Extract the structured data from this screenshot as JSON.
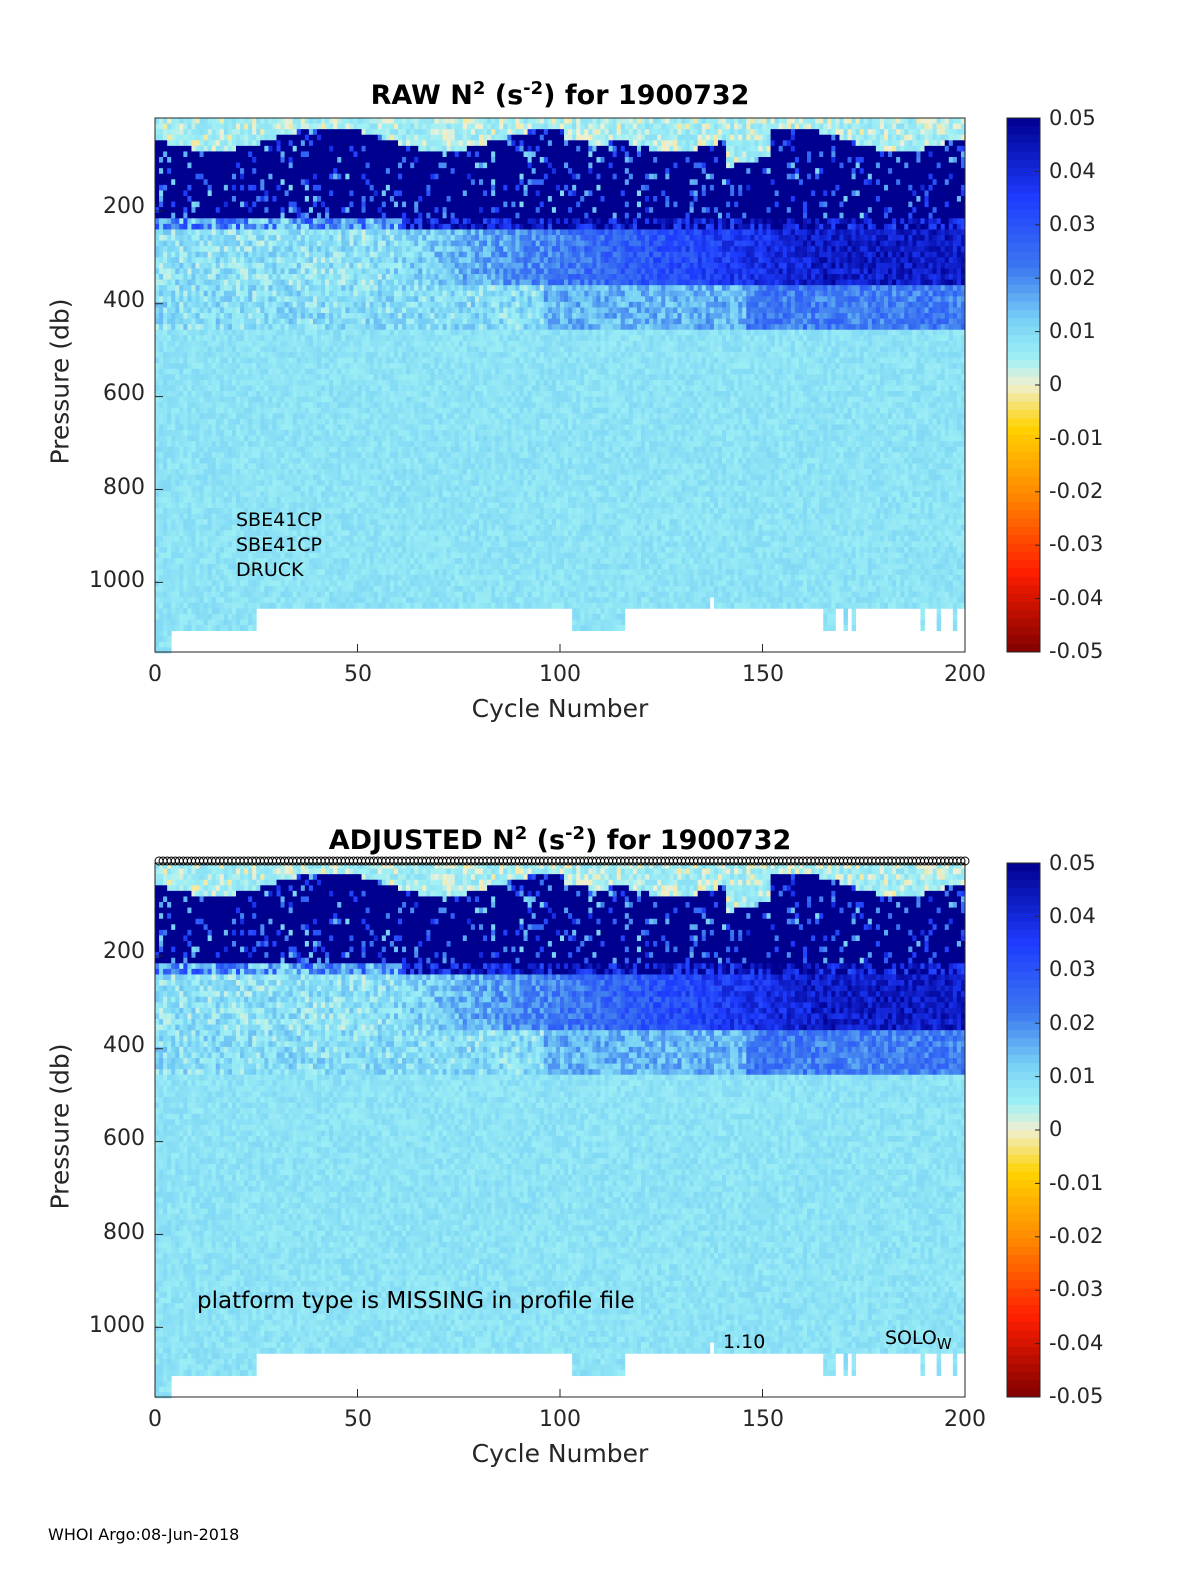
{
  "footer": "WHOI Argo:08-Jun-2018",
  "axes": {
    "xlabel": "Cycle Number",
    "ylabel": "Pressure (db)",
    "x_ticks": [
      "0",
      "50",
      "100",
      "150",
      "200"
    ],
    "y_ticks": [
      "200",
      "400",
      "600",
      "800",
      "1000"
    ],
    "colorbar_ticks": [
      "0.05",
      "0.04",
      "0.03",
      "0.02",
      "0.01",
      "0",
      "-0.01",
      "-0.02",
      "-0.03",
      "-0.04",
      "-0.05"
    ]
  },
  "panels": {
    "raw": {
      "title_main": "RAW N",
      "title_sup": "2",
      "title_unit_open": " (s",
      "title_unit_sup": "-2",
      "title_rest": ") for 1900732",
      "sensors": [
        "SBE41CP",
        "SBE41CP",
        "DRUCK"
      ]
    },
    "adjusted": {
      "title_main": "ADJUSTED N",
      "title_sup": "2",
      "title_unit_open": " (s",
      "title_unit_sup": "-2",
      "title_rest": ") for 1900732",
      "platform_note": "platform type is MISSING in profile file",
      "version": "1.10",
      "float_type": "SOLO",
      "float_type_sub": "W"
    }
  },
  "colors": {
    "deep_blue": "#00008f",
    "blue": "#1e3cff",
    "mid_blue": "#3c78f0",
    "light_blue": "#78d2f5",
    "cyan": "#9ff0f5",
    "pale": "#f0f0d2",
    "yellow": "#ffd200",
    "orange": "#ff8c00",
    "red": "#ff1e00",
    "dark_red": "#800000"
  },
  "chart_data": [
    {
      "type": "heatmap",
      "title": "RAW N^2 (s^-2) for 1900732",
      "xlabel": "Cycle Number",
      "ylabel": "Pressure (db)",
      "xlim": [
        0,
        200
      ],
      "ylim": [
        1150,
        0
      ],
      "clim": [
        -0.05,
        0.05
      ],
      "colormap": "jet-like (dark red → orange → pale → cyan → blue → navy)",
      "bands": [
        {
          "pressure": [
            0,
            40
          ],
          "description": "near-zero (pale / cyan)"
        },
        {
          "pressure": [
            40,
            230
          ],
          "n2": 0.05,
          "description": "strong stratification, saturated navy"
        },
        {
          "pressure": [
            230,
            360
          ],
          "n2": "0.01 (cycles 0-60) to 0.04 (cycles 150-200)"
        },
        {
          "pressure": [
            360,
            450
          ],
          "n2": "0.01 to 0.03"
        },
        {
          "pressure": [
            450,
            1050
          ],
          "n2": 0.008
        }
      ],
      "profile_depth_max": [
        {
          "cycles": [
            0,
            4
          ],
          "pressure": 1150
        },
        {
          "cycles": [
            4,
            25
          ],
          "pressure": 1100
        },
        {
          "cycles": [
            25,
            103
          ],
          "pressure": 1050
        },
        {
          "cycles": [
            103,
            116
          ],
          "pressure": 1100
        },
        {
          "cycles": [
            116,
            200
          ],
          "pressure": 1050
        }
      ]
    },
    {
      "type": "heatmap",
      "title": "ADJUSTED N^2 (s^-2) for 1900732",
      "xlabel": "Cycle Number",
      "ylabel": "Pressure (db)",
      "xlim": [
        0,
        200
      ],
      "ylim": [
        1150,
        0
      ],
      "clim": [
        -0.05,
        0.05
      ],
      "markers_at_surface": "open circles at every cycle (1-200) at pressure 0",
      "bands": "same as RAW panel"
    }
  ]
}
